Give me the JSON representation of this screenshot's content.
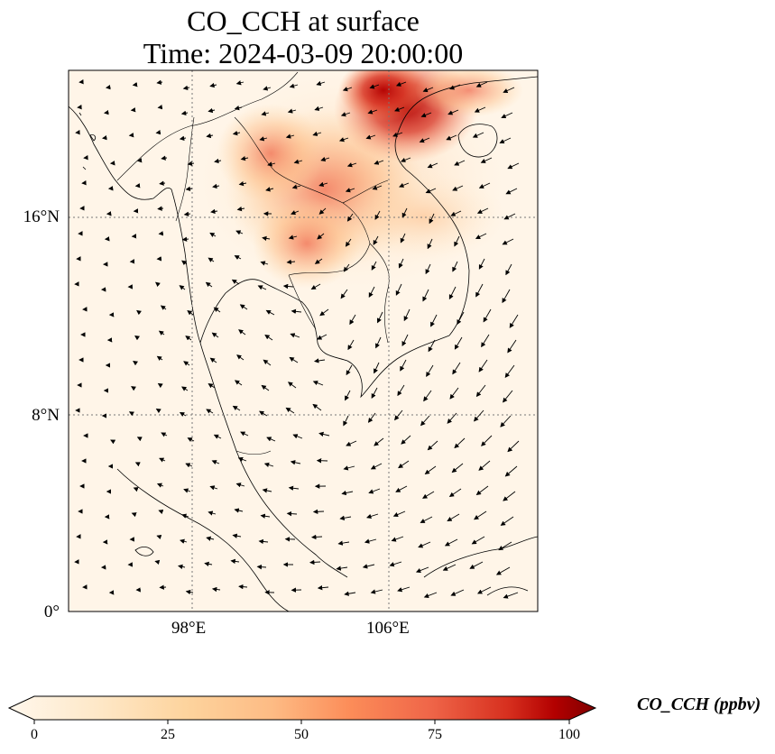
{
  "title": "CO_CCH at surface",
  "subtitle": "Time: 2024-03-09 20:00:00",
  "map": {
    "extent": {
      "lon_min": 93,
      "lon_max": 112,
      "lat_min": 0,
      "lat_max": 22
    },
    "lon_ticks": [
      "98°E",
      "106°E"
    ],
    "lat_ticks": [
      "16°N",
      "8°N",
      "0°"
    ],
    "gridlines": "dotted"
  },
  "colorbar": {
    "label": "CO_CCH (ppbv)",
    "ticks": [
      "0",
      "25",
      "50",
      "75",
      "100"
    ],
    "min": 0,
    "max": 100,
    "colormap": "OrRd",
    "extend": "both"
  },
  "colors": {
    "low": "#fff7ec",
    "mid": "#fc8d59",
    "high": "#7f0000"
  }
}
